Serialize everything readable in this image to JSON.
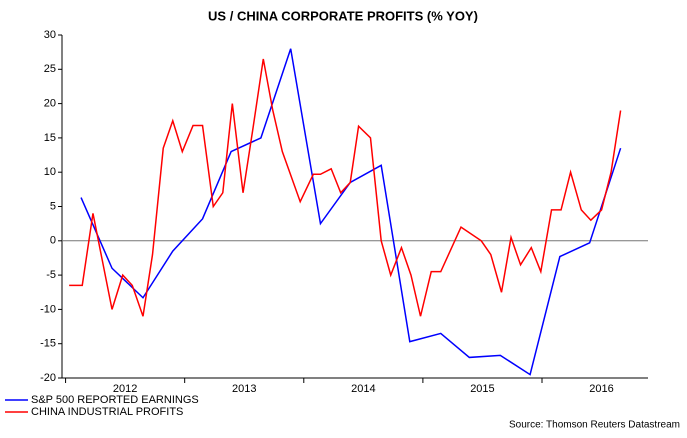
{
  "chart_data": {
    "type": "line",
    "title": "US / CHINA CORPORATE PROFITS (% YOY)",
    "source": "Source: Thomson Reuters Datastream",
    "xlim": [
      2011.97,
      2016.89
    ],
    "xticks": [
      2012,
      2013,
      2014,
      2015,
      2016
    ],
    "ylim": [
      -20,
      30
    ],
    "yticks": [
      -20,
      -15,
      -10,
      -5,
      0,
      5,
      10,
      15,
      20,
      25,
      30
    ],
    "zero_line": true,
    "legend": "bottom-left",
    "series": [
      {
        "name": "S&P 500 REPORTED EARNINGS",
        "color": "#0000ff",
        "x": [
          2012.13,
          2012.39,
          2012.65,
          2012.9,
          2013.15,
          2013.39,
          2013.64,
          2013.89,
          2014.14,
          2014.39,
          2014.65,
          2014.89,
          2015.15,
          2015.39,
          2015.65,
          2015.9,
          2016.15,
          2016.4,
          2016.66
        ],
        "values": [
          6.3,
          -4,
          -8.3,
          -1.5,
          3.2,
          13,
          15,
          28,
          2.5,
          8.5,
          11,
          -14.7,
          -13.5,
          -17,
          -16.7,
          -19.5,
          -2.3,
          -0.3,
          13.5
        ]
      },
      {
        "name": "CHINA INDUSTRIAL PROFITS",
        "color": "#ff0000",
        "x": [
          2012.03,
          2012.14,
          2012.23,
          2012.31,
          2012.39,
          2012.48,
          2012.56,
          2012.65,
          2012.73,
          2012.82,
          2012.9,
          2012.98,
          2013.07,
          2013.15,
          2013.24,
          2013.32,
          2013.4,
          2013.49,
          2013.57,
          2013.66,
          2013.74,
          2013.82,
          2013.97,
          2014.08,
          2014.14,
          2014.23,
          2014.31,
          2014.39,
          2014.46,
          2014.56,
          2014.65,
          2014.73,
          2014.82,
          2014.9,
          2014.98,
          2015.07,
          2015.15,
          2015.32,
          2015.49,
          2015.57,
          2015.66,
          2015.74,
          2015.82,
          2015.91,
          2015.99,
          2016.08,
          2016.16,
          2016.24,
          2016.33,
          2016.41,
          2016.5,
          2016.58,
          2016.66
        ],
        "values": [
          -6.5,
          -6.5,
          4,
          -3,
          -10,
          -5,
          -6.5,
          -11,
          -2,
          13.5,
          17.5,
          13,
          16.8,
          16.8,
          5,
          7,
          20,
          7,
          16,
          26.5,
          19,
          13,
          5.7,
          9.7,
          9.7,
          10.5,
          7,
          8.5,
          16.7,
          15,
          0,
          -5,
          -1,
          -5,
          -11,
          -4.5,
          -4.5,
          2,
          0,
          -2,
          -7.5,
          0.5,
          -3.5,
          -1,
          -4.5,
          4.5,
          4.5,
          10,
          4.5,
          3,
          4.5,
          10,
          19
        ]
      }
    ]
  }
}
